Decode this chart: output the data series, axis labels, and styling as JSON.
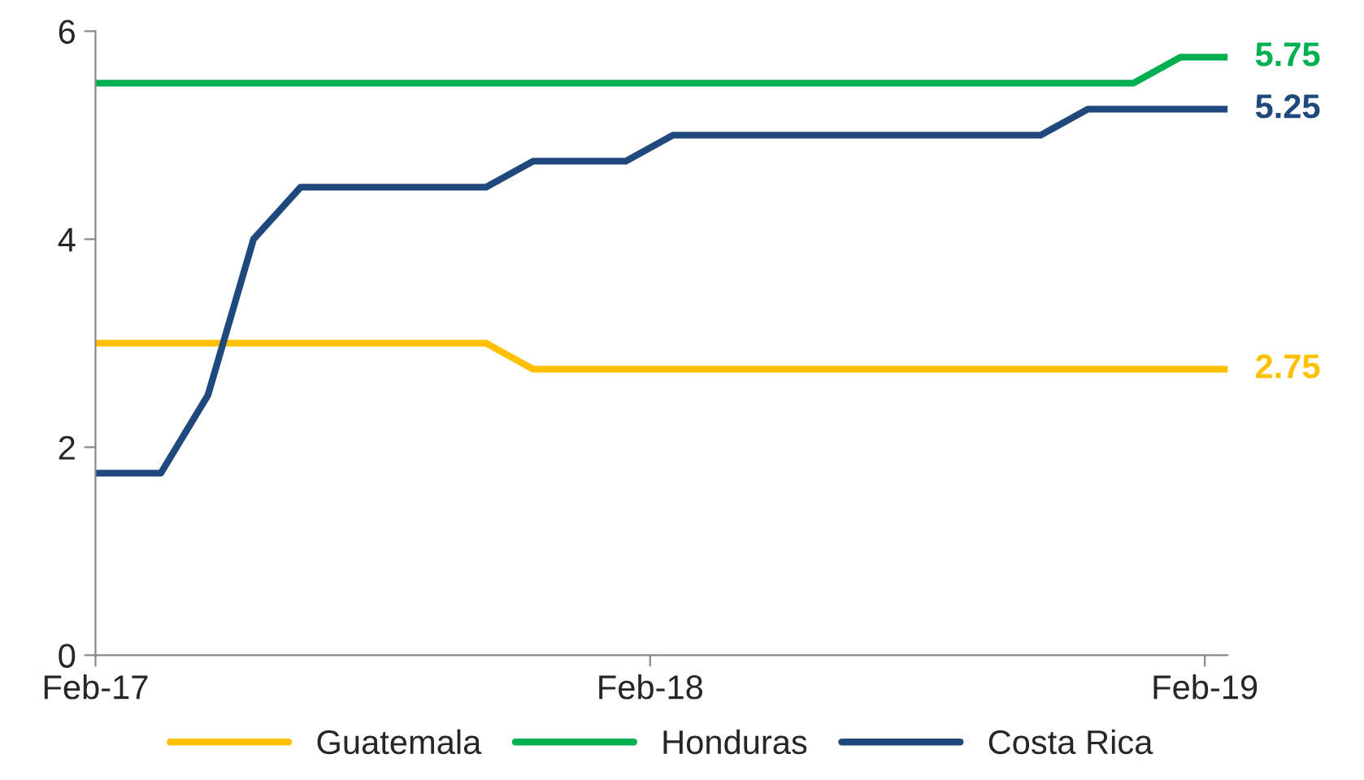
{
  "chart_data": {
    "type": "line",
    "series": [
      {
        "name": "Guatemala",
        "color": "#ffc000",
        "x": [
          "2017-02-01",
          "2017-10-16",
          "2017-11-16",
          "2019-02-16"
        ],
        "values": [
          3,
          3,
          2.75,
          2.75
        ],
        "value_labels": [
          null,
          null,
          null,
          "2.75"
        ]
      },
      {
        "name": "Honduras",
        "color": "#00b050",
        "x": [
          "2017-02-01",
          "2018-12-16",
          "2019-01-16",
          "2019-02-16"
        ],
        "values": [
          5.5,
          5.5,
          5.75,
          5.75
        ],
        "value_labels": [
          null,
          null,
          null,
          "5.75"
        ]
      },
      {
        "name": "Costa Rica",
        "color": "#1f497d",
        "x": [
          "2017-02-01",
          "2017-03-16",
          "2017-04-16",
          "2017-05-16",
          "2017-06-16",
          "2017-10-16",
          "2017-11-16",
          "2018-01-16",
          "2018-02-16",
          "2018-10-16",
          "2018-11-16",
          "2019-02-16"
        ],
        "values": [
          1.75,
          1.75,
          2.5,
          4,
          4.5,
          4.5,
          4.75,
          4.75,
          5,
          5,
          5.25,
          5.25
        ],
        "value_labels": [
          null,
          null,
          null,
          null,
          null,
          null,
          null,
          null,
          null,
          null,
          null,
          "5.25"
        ]
      }
    ],
    "xlim": [
      "2017-02-01",
      "2019-02-16"
    ],
    "xticks": [
      {
        "value": "2017-02-01",
        "label": "Feb-17"
      },
      {
        "value": "2018-02-01",
        "label": "Feb-18"
      },
      {
        "value": "2019-02-01",
        "label": "Feb-19"
      }
    ],
    "ylim": [
      0,
      6
    ],
    "yticks": [
      0,
      2,
      4,
      6
    ],
    "grid": false,
    "legend": "bottom",
    "marker": "none",
    "line_style": "solid"
  }
}
